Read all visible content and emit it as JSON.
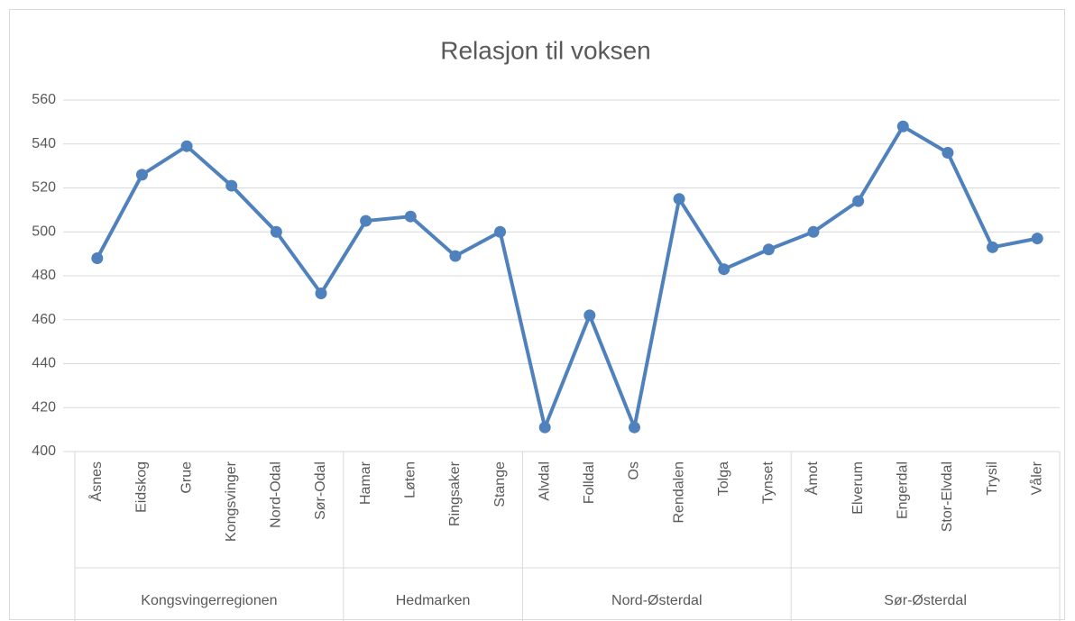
{
  "chart_data": {
    "type": "line",
    "title": "Relasjon til voksen",
    "groups": [
      {
        "name": "Kongsvingerregionen",
        "categories": [
          "Åsnes",
          "Eidskog",
          "Grue",
          "Kongsvinger",
          "Nord-Odal",
          "Sør-Odal"
        ]
      },
      {
        "name": "Hedmarken",
        "categories": [
          "Hamar",
          "Løten",
          "Ringsaker",
          "Stange"
        ]
      },
      {
        "name": "Nord-Østerdal",
        "categories": [
          "Alvdal",
          "Folldal",
          "Os",
          "Rendalen",
          "Tolga",
          "Tynset"
        ]
      },
      {
        "name": "Sør-Østerdal",
        "categories": [
          "Åmot",
          "Elverum",
          "Engerdal",
          "Stor-Elvdal",
          "Trysil",
          "Våler"
        ]
      }
    ],
    "values": [
      488,
      526,
      539,
      521,
      500,
      472,
      505,
      507,
      489,
      500,
      411,
      462,
      411,
      515,
      483,
      492,
      500,
      514,
      548,
      536,
      493,
      497
    ],
    "color": "#4f81bd",
    "ylim": [
      400,
      560
    ],
    "yticks": [
      400,
      420,
      440,
      460,
      480,
      500,
      520,
      540,
      560
    ],
    "grid": true
  }
}
